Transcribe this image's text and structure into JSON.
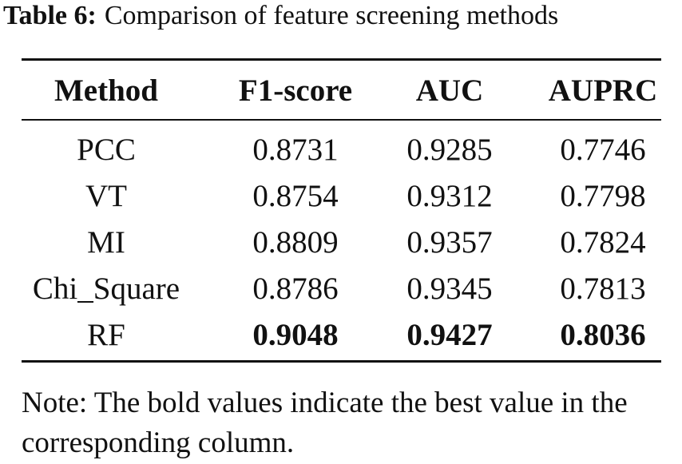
{
  "caption": {
    "label": "Table 6:",
    "text": "Comparison of feature screening methods"
  },
  "table": {
    "header": [
      "Method",
      "F1-score",
      "AUC",
      "AUPRC"
    ],
    "rows": [
      [
        "PCC",
        "0.8731",
        "0.9285",
        "0.7746"
      ],
      [
        "VT",
        "0.8754",
        "0.9312",
        "0.7798"
      ],
      [
        "MI",
        "0.8809",
        "0.9357",
        "0.7824"
      ],
      [
        "Chi_Square",
        "0.8786",
        "0.9345",
        "0.7813"
      ],
      [
        "RF",
        "0.9048",
        "0.9427",
        "0.8036"
      ]
    ]
  },
  "note": "Note: The bold values indicate the best value in the corresponding column."
}
